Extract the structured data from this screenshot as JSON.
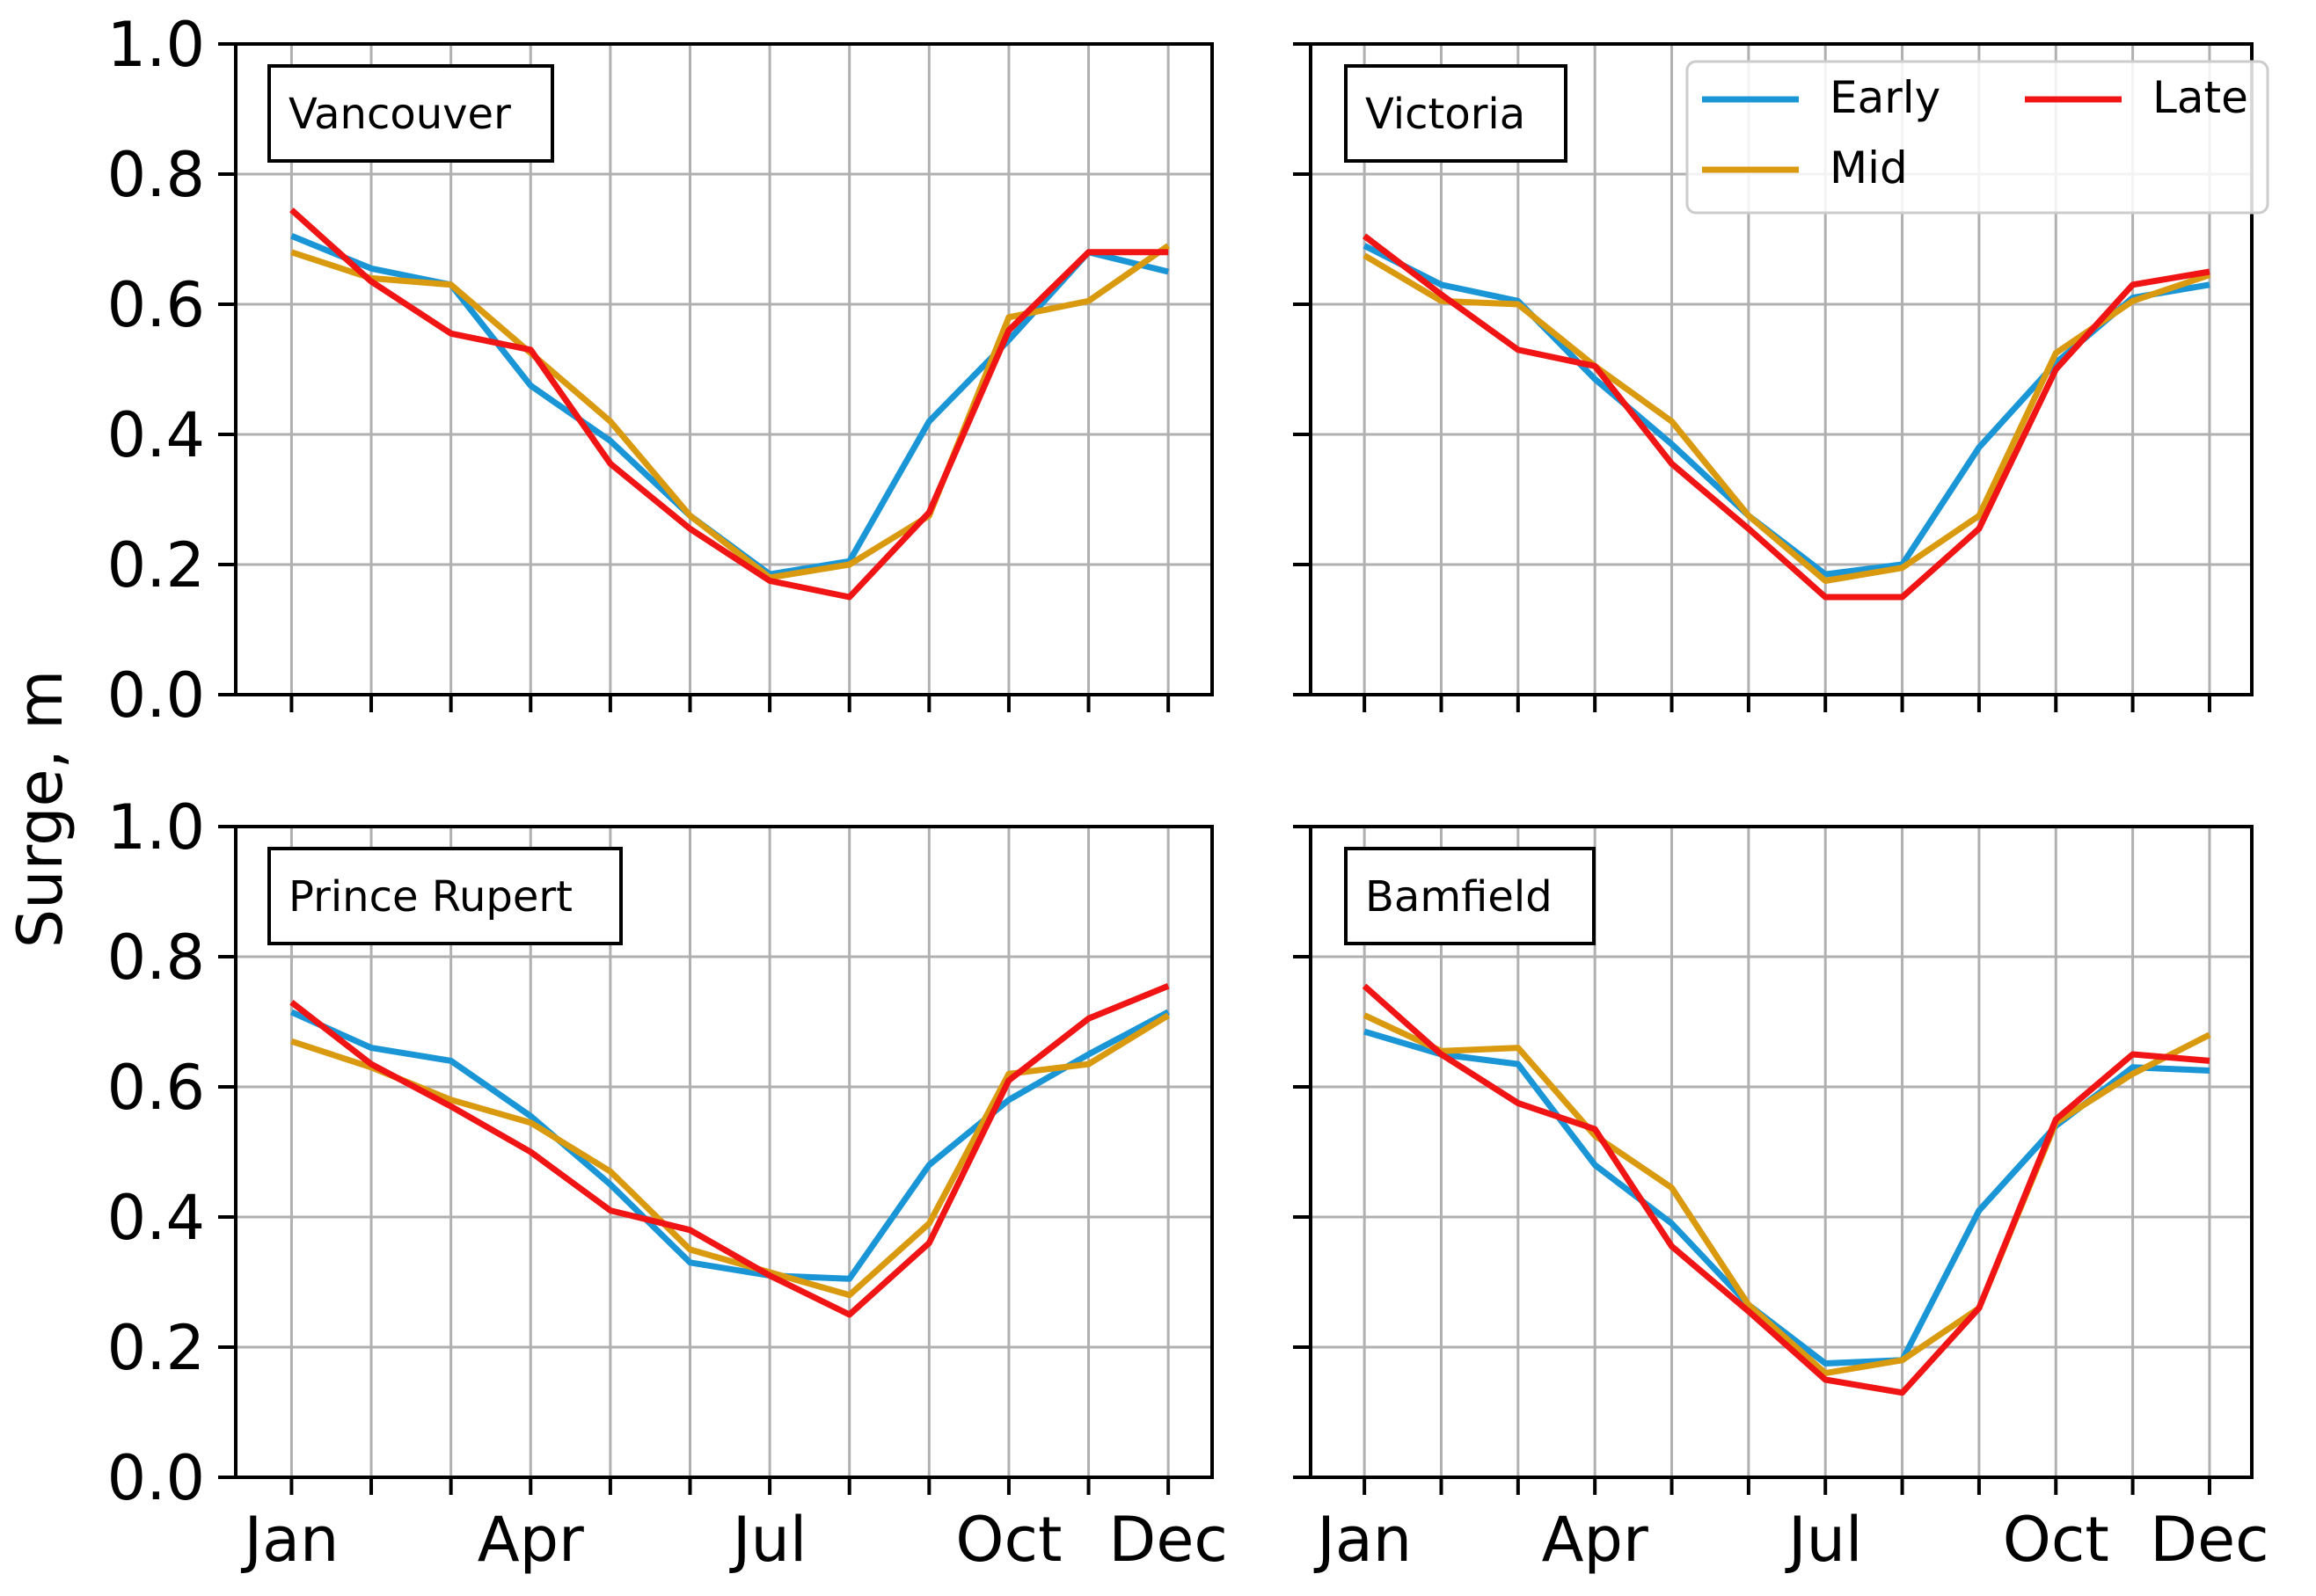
{
  "chart_data": {
    "type": "line",
    "ylabel": "Surge, m",
    "ylim": [
      0,
      1.0
    ],
    "yticks": [
      0.0,
      0.2,
      0.4,
      0.6,
      0.8,
      1.0
    ],
    "ytick_labels": [
      "0.0",
      "0.2",
      "0.4",
      "0.6",
      "0.8",
      "1.0"
    ],
    "xlim": [
      0.3,
      12.55
    ],
    "x": [
      1,
      2,
      3,
      4,
      5,
      6,
      7,
      8,
      9,
      10,
      11,
      12
    ],
    "xticks": [
      1,
      4,
      7,
      10,
      12
    ],
    "xtick_labels": [
      "Jan",
      "Apr",
      "Jul",
      "Oct",
      "Dec"
    ],
    "grid": true,
    "legend": {
      "placement": "top-right of Victoria panel",
      "entries": [
        {
          "name": "Early",
          "color": "#1a96d6"
        },
        {
          "name": "Mid",
          "color": "#d99a10"
        },
        {
          "name": "Late",
          "color": "#f01414"
        }
      ]
    },
    "panels": [
      {
        "title": "Vancouver",
        "series": [
          {
            "name": "Early",
            "color": "#1a96d6",
            "values": [
              0.705,
              0.655,
              0.63,
              0.475,
              0.39,
              0.275,
              0.185,
              0.205,
              0.42,
              0.545,
              0.68,
              0.65
            ]
          },
          {
            "name": "Mid",
            "color": "#d99a10",
            "values": [
              0.68,
              0.64,
              0.63,
              0.525,
              0.42,
              0.275,
              0.18,
              0.2,
              0.275,
              0.58,
              0.605,
              0.69
            ]
          },
          {
            "name": "Late",
            "color": "#f01414",
            "values": [
              0.745,
              0.635,
              0.555,
              0.53,
              0.355,
              0.255,
              0.175,
              0.15,
              0.28,
              0.56,
              0.68,
              0.68
            ]
          }
        ]
      },
      {
        "title": "Victoria",
        "series": [
          {
            "name": "Early",
            "color": "#1a96d6",
            "values": [
              0.69,
              0.63,
              0.605,
              0.485,
              0.385,
              0.275,
              0.185,
              0.2,
              0.38,
              0.51,
              0.61,
              0.63
            ]
          },
          {
            "name": "Mid",
            "color": "#d99a10",
            "values": [
              0.675,
              0.605,
              0.6,
              0.505,
              0.42,
              0.275,
              0.175,
              0.195,
              0.275,
              0.525,
              0.605,
              0.645
            ]
          },
          {
            "name": "Late",
            "color": "#f01414",
            "values": [
              0.705,
              0.615,
              0.53,
              0.505,
              0.355,
              0.255,
              0.15,
              0.15,
              0.255,
              0.5,
              0.63,
              0.65
            ]
          }
        ]
      },
      {
        "title": "Prince Rupert",
        "series": [
          {
            "name": "Early",
            "color": "#1a96d6",
            "values": [
              0.715,
              0.66,
              0.64,
              0.555,
              0.45,
              0.33,
              0.31,
              0.305,
              0.48,
              0.58,
              0.65,
              0.715
            ]
          },
          {
            "name": "Mid",
            "color": "#d99a10",
            "values": [
              0.67,
              0.63,
              0.58,
              0.545,
              0.47,
              0.35,
              0.315,
              0.28,
              0.39,
              0.62,
              0.635,
              0.71
            ]
          },
          {
            "name": "Late",
            "color": "#f01414",
            "values": [
              0.73,
              0.635,
              0.57,
              0.5,
              0.41,
              0.38,
              0.31,
              0.25,
              0.36,
              0.61,
              0.705,
              0.755
            ]
          }
        ]
      },
      {
        "title": "Bamfield",
        "series": [
          {
            "name": "Early",
            "color": "#1a96d6",
            "values": [
              0.685,
              0.65,
              0.635,
              0.48,
              0.39,
              0.265,
              0.175,
              0.18,
              0.41,
              0.54,
              0.63,
              0.625
            ]
          },
          {
            "name": "Mid",
            "color": "#d99a10",
            "values": [
              0.71,
              0.655,
              0.66,
              0.525,
              0.445,
              0.265,
              0.16,
              0.18,
              0.26,
              0.545,
              0.62,
              0.68
            ]
          },
          {
            "name": "Late",
            "color": "#f01414",
            "values": [
              0.755,
              0.65,
              0.575,
              0.535,
              0.355,
              0.255,
              0.15,
              0.13,
              0.26,
              0.55,
              0.65,
              0.64
            ]
          }
        ]
      }
    ]
  }
}
